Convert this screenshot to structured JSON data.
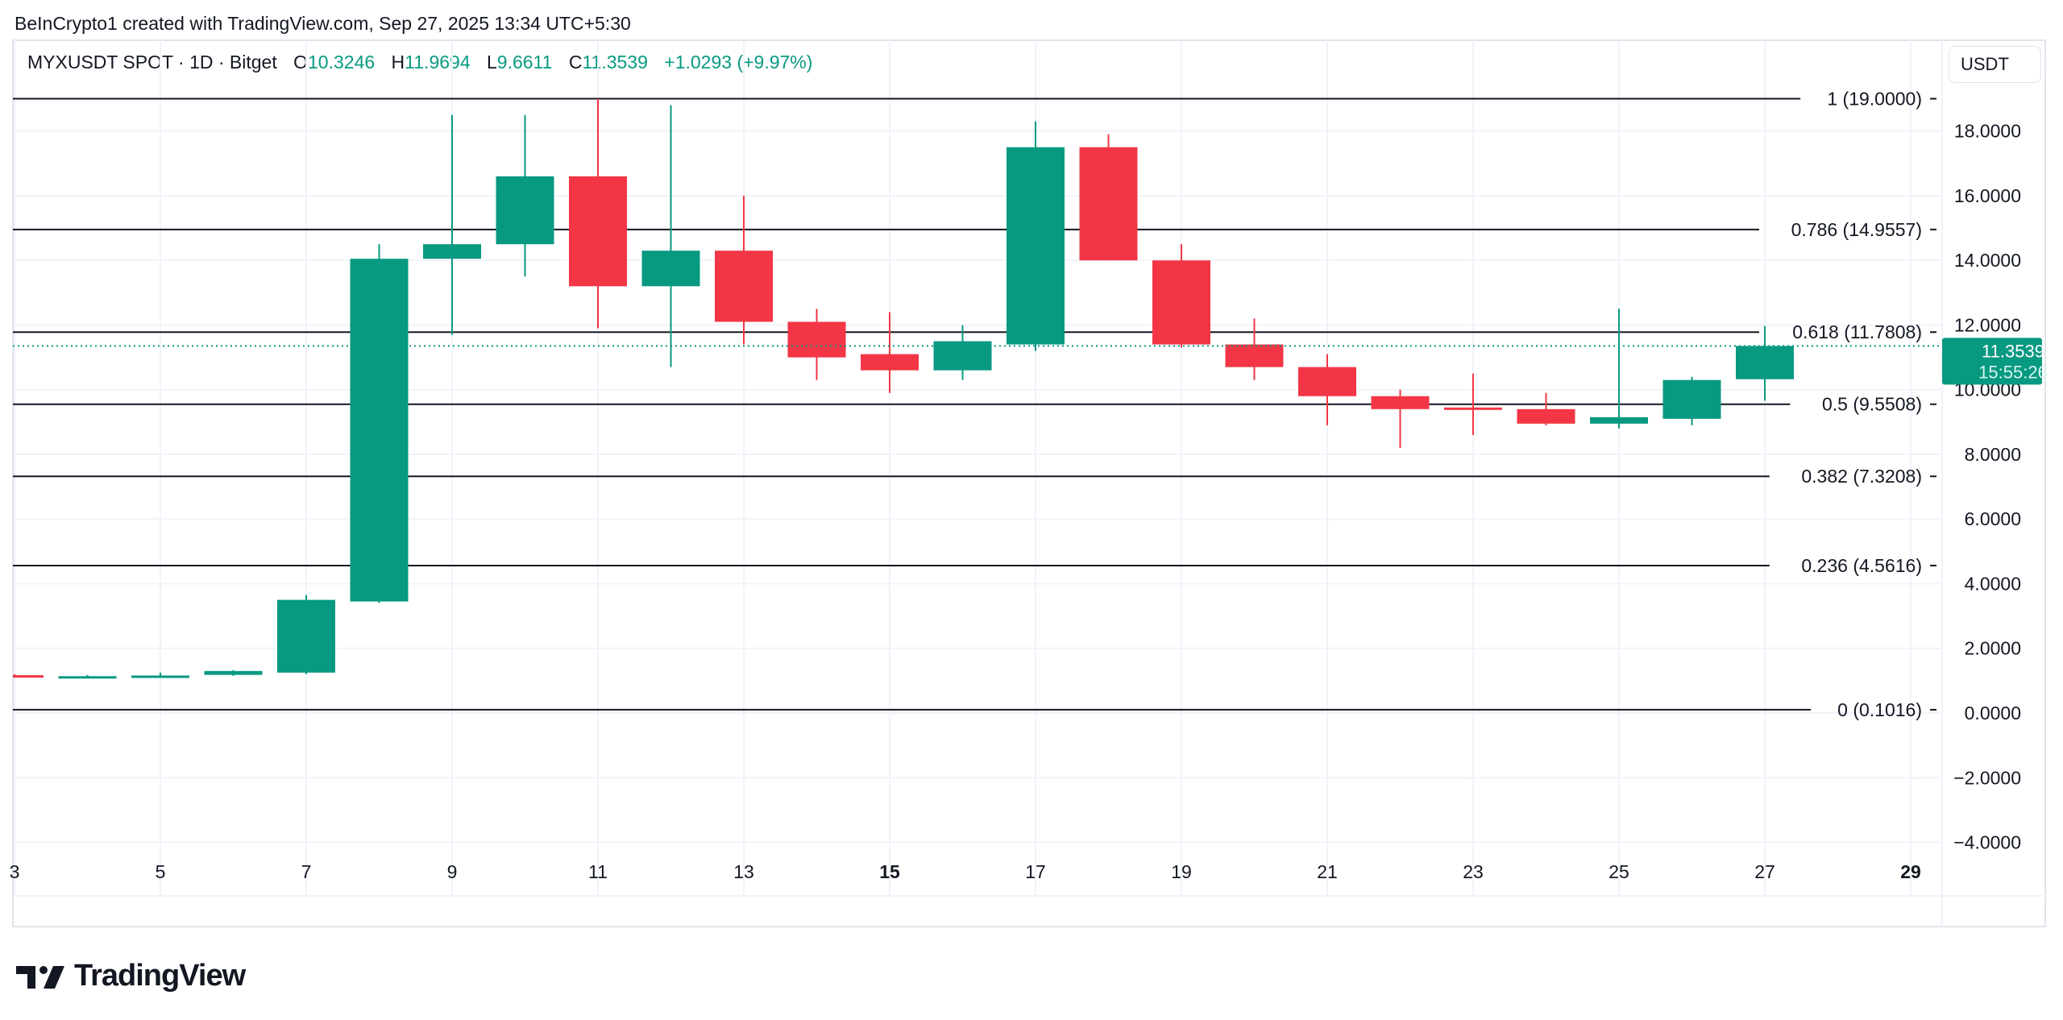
{
  "attribution": "BeInCrypto1 created with TradingView.com, Sep 27, 2025 13:34 UTC+5:30",
  "legend": {
    "symbol": "MYXUSDT SPOT · 1D · Bitget",
    "o_label": "O",
    "o": "10.3246",
    "h_label": "H",
    "h": "11.9694",
    "l_label": "L",
    "l": "9.6611",
    "c_label": "C",
    "c": "11.3539",
    "change": "+1.0293 (+9.97%)"
  },
  "currency": "USDT",
  "last_price": {
    "price": "11.3539",
    "countdown": "15:55:26"
  },
  "logo_text": "TradingView",
  "colors": {
    "up": "#089981",
    "down": "#F23645",
    "grid": "#F0F3FA",
    "fib": "#131722"
  },
  "chart_data": {
    "type": "candlestick",
    "title": "MYXUSDT SPOT · 1D · Bitget",
    "ylim": [
      -5.6,
      20.6
    ],
    "xlim": [
      2.9,
      30.3
    ],
    "y_ticks": [
      "−4.0000",
      "−2.0000",
      "0.0000",
      "2.0000",
      "4.0000",
      "6.0000",
      "8.0000",
      "10.0000",
      "12.0000",
      "14.0000",
      "16.0000",
      "18.0000"
    ],
    "y_tick_values": [
      -4,
      -2,
      0,
      2,
      4,
      6,
      8,
      10,
      12,
      14,
      16,
      18
    ],
    "x_ticks": [
      {
        "day": 3,
        "label": "3"
      },
      {
        "day": 5,
        "label": "5"
      },
      {
        "day": 7,
        "label": "7"
      },
      {
        "day": 9,
        "label": "9"
      },
      {
        "day": 11,
        "label": "11"
      },
      {
        "day": 13,
        "label": "13"
      },
      {
        "day": 15,
        "label": "15",
        "bold": true
      },
      {
        "day": 17,
        "label": "17"
      },
      {
        "day": 19,
        "label": "19"
      },
      {
        "day": 21,
        "label": "21"
      },
      {
        "day": 23,
        "label": "23"
      },
      {
        "day": 25,
        "label": "25"
      },
      {
        "day": 27,
        "label": "27"
      },
      {
        "day": 29,
        "label": "29",
        "bold": true
      }
    ],
    "candles": [
      {
        "day": 3,
        "o": 1.17,
        "h": 1.2,
        "l": 1.1,
        "c": 1.13
      },
      {
        "day": 4,
        "o": 1.12,
        "h": 1.18,
        "l": 1.08,
        "c": 1.14
      },
      {
        "day": 5,
        "o": 1.13,
        "h": 1.25,
        "l": 1.1,
        "c": 1.16
      },
      {
        "day": 6,
        "o": 1.18,
        "h": 1.33,
        "l": 1.15,
        "c": 1.3
      },
      {
        "day": 7,
        "o": 1.25,
        "h": 3.65,
        "l": 1.2,
        "c": 3.5
      },
      {
        "day": 8,
        "o": 3.45,
        "h": 14.5,
        "l": 3.4,
        "c": 14.05
      },
      {
        "day": 9,
        "o": 14.05,
        "h": 18.5,
        "l": 11.7,
        "c": 14.5
      },
      {
        "day": 10,
        "o": 14.5,
        "h": 18.5,
        "l": 13.5,
        "c": 16.6
      },
      {
        "day": 11,
        "o": 16.6,
        "h": 19.0,
        "l": 11.9,
        "c": 13.2
      },
      {
        "day": 12,
        "o": 13.2,
        "h": 18.8,
        "l": 10.7,
        "c": 14.3
      },
      {
        "day": 13,
        "o": 14.3,
        "h": 16.0,
        "l": 11.4,
        "c": 12.1
      },
      {
        "day": 14,
        "o": 12.1,
        "h": 12.5,
        "l": 10.3,
        "c": 11.0
      },
      {
        "day": 15,
        "o": 11.1,
        "h": 12.4,
        "l": 9.9,
        "c": 10.6
      },
      {
        "day": 16,
        "o": 10.6,
        "h": 12.0,
        "l": 10.3,
        "c": 11.5
      },
      {
        "day": 17,
        "o": 11.4,
        "h": 18.3,
        "l": 11.2,
        "c": 17.5
      },
      {
        "day": 18,
        "o": 17.5,
        "h": 17.9,
        "l": 14.0,
        "c": 14.0
      },
      {
        "day": 19,
        "o": 14.0,
        "h": 14.5,
        "l": 11.3,
        "c": 11.4
      },
      {
        "day": 20,
        "o": 11.4,
        "h": 12.2,
        "l": 10.3,
        "c": 10.7
      },
      {
        "day": 21,
        "o": 10.7,
        "h": 11.1,
        "l": 8.9,
        "c": 9.8
      },
      {
        "day": 22,
        "o": 9.8,
        "h": 10.0,
        "l": 8.2,
        "c": 9.4
      },
      {
        "day": 23,
        "o": 9.45,
        "h": 10.5,
        "l": 8.6,
        "c": 9.4
      },
      {
        "day": 24,
        "o": 9.4,
        "h": 9.9,
        "l": 8.9,
        "c": 8.95
      },
      {
        "day": 25,
        "o": 8.95,
        "h": 12.5,
        "l": 8.8,
        "c": 9.15
      },
      {
        "day": 26,
        "o": 9.1,
        "h": 10.4,
        "l": 8.9,
        "c": 10.3
      },
      {
        "day": 27,
        "o": 10.3246,
        "h": 11.9694,
        "l": 9.6611,
        "c": 11.3539
      }
    ],
    "fib_levels": [
      {
        "ratio": "1",
        "price": 19.0,
        "label": "1 (19.0000)"
      },
      {
        "ratio": "0.786",
        "price": 14.9557,
        "label": "0.786 (14.9557)"
      },
      {
        "ratio": "0.618",
        "price": 11.7808,
        "label": "0.618 (11.7808)"
      },
      {
        "ratio": "0.5",
        "price": 9.5508,
        "label": "0.5 (9.5508)"
      },
      {
        "ratio": "0.382",
        "price": 7.3208,
        "label": "0.382 (7.3208)"
      },
      {
        "ratio": "0.236",
        "price": 4.5616,
        "label": "0.236 (4.5616)"
      },
      {
        "ratio": "0",
        "price": 0.1016,
        "label": "0 (0.1016)"
      }
    ],
    "last_price_value": 11.3539
  }
}
